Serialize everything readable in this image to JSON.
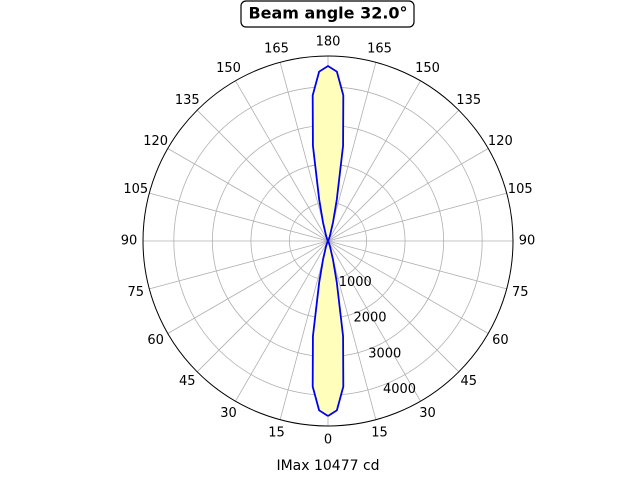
{
  "chart_data": {
    "type": "polar",
    "title": "Beam angle 32.0°",
    "xlabel": "IMax 10477 cd",
    "rlim": [
      0,
      4800
    ],
    "rticks": [
      1000,
      2000,
      3000,
      4000
    ],
    "thetaticks": [
      0,
      15,
      30,
      45,
      60,
      75,
      90,
      105,
      120,
      135,
      150,
      165,
      180,
      {
        "value": 195,
        "label": "165"
      },
      {
        "value": 210,
        "label": "150"
      },
      {
        "value": 225,
        "label": "135"
      },
      {
        "value": 240,
        "label": "120"
      },
      {
        "value": 255,
        "label": "105"
      },
      {
        "value": 270,
        "label": "90"
      },
      {
        "value": 285,
        "label": "75"
      },
      {
        "value": 300,
        "label": "60"
      },
      {
        "value": 315,
        "label": "45"
      },
      {
        "value": 330,
        "label": "30"
      },
      {
        "value": 345,
        "label": "15"
      }
    ],
    "grid": true,
    "series": [
      {
        "color": "#0000ee",
        "fill": "#ffffbb",
        "theta": [
          0,
          3,
          6,
          9,
          12,
          15,
          20,
          30,
          90,
          150,
          160,
          165,
          168,
          171,
          174,
          177,
          180,
          183,
          186,
          189,
          192,
          195,
          200,
          210,
          270,
          330,
          340,
          345,
          348,
          351,
          354,
          357,
          360
        ],
        "values": [
          4540,
          4400,
          3800,
          2500,
          1100,
          500,
          150,
          30,
          0,
          30,
          150,
          500,
          1100,
          2500,
          3800,
          4400,
          4540,
          4400,
          3800,
          2500,
          1100,
          500,
          150,
          30,
          0,
          30,
          150,
          500,
          1100,
          2500,
          3800,
          4400,
          4540
        ]
      }
    ]
  }
}
